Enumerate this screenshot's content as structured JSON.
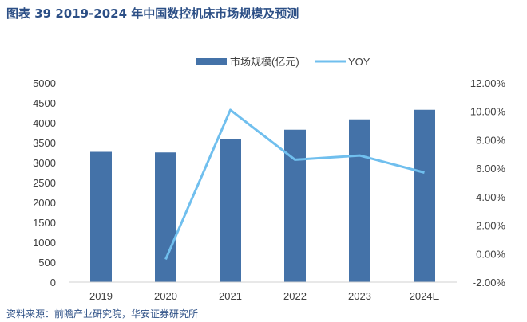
{
  "header": {
    "title": "图表 39 2019-2024 年中国数控机床市场规模及预测"
  },
  "footer": {
    "source": "资料来源：前瞻产业研究院，华安证券研究所"
  },
  "colors": {
    "bar": "#4472a8",
    "line": "#70bfee",
    "title": "#2c4f86",
    "axis_text": "#404040"
  },
  "chart_data": {
    "type": "bar",
    "title": "",
    "categories": [
      "2019",
      "2020",
      "2021",
      "2022",
      "2023",
      "2024E"
    ],
    "series": [
      {
        "name": "市场规模(亿元)",
        "kind": "bar",
        "axis": "left",
        "values": [
          3270,
          3255,
          3590,
          3825,
          4085,
          4325
        ]
      },
      {
        "name": "YOY",
        "kind": "line",
        "axis": "right",
        "values": [
          null,
          -0.4,
          10.1,
          6.6,
          6.9,
          5.7
        ]
      }
    ],
    "y_left": {
      "min": 0,
      "max": 5000,
      "step": 500,
      "ticks": [
        "0",
        "500",
        "1000",
        "1500",
        "2000",
        "2500",
        "3000",
        "3500",
        "4000",
        "4500",
        "5000"
      ]
    },
    "y_right": {
      "min": -2,
      "max": 12,
      "step": 2,
      "ticks": [
        "-2.00%",
        "0.00%",
        "2.00%",
        "4.00%",
        "6.00%",
        "8.00%",
        "10.00%",
        "12.00%"
      ]
    },
    "legend": {
      "position": "top-center"
    },
    "grid": false
  }
}
